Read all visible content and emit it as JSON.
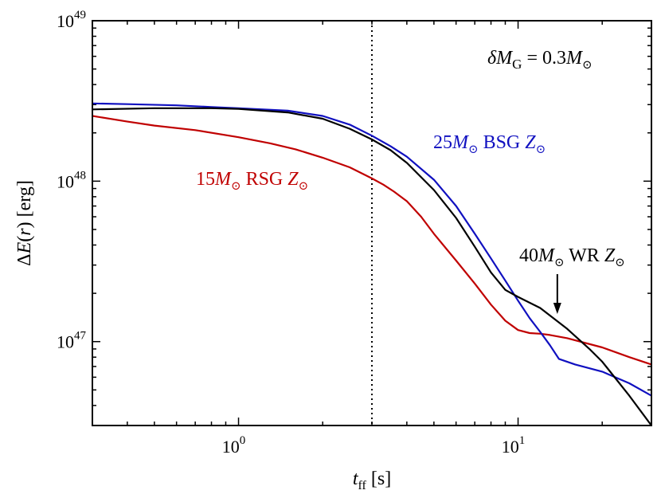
{
  "chart_data": {
    "type": "line",
    "xscale": "log",
    "yscale": "log",
    "xlim": [
      0.3,
      30
    ],
    "ylim": [
      3e+46,
      1e+49
    ],
    "xlabel": "t_ff [s]",
    "ylabel": "ΔE(r) [erg]",
    "x_ticks": [
      {
        "value": 1,
        "base": "10",
        "exp": "0"
      },
      {
        "value": 10,
        "base": "10",
        "exp": "1"
      }
    ],
    "y_ticks": [
      {
        "value": 1e+47,
        "base": "10",
        "exp": "47"
      },
      {
        "value": 1e+48,
        "base": "10",
        "exp": "48"
      },
      {
        "value": 1e+49,
        "base": "10",
        "exp": "49"
      }
    ],
    "vline": {
      "x": 3,
      "style": "dotted",
      "color": "#000000"
    },
    "annotation": {
      "text": "δM_G = 0.3M_⊙"
    },
    "series": [
      {
        "name": "15M⊙ RSG Z⊙",
        "label_mass": "15",
        "label_type": "RSG",
        "color": "#c00000",
        "x": [
          0.3,
          0.4,
          0.5,
          0.7,
          1.0,
          1.3,
          1.6,
          2.0,
          2.5,
          3.0,
          3.3,
          3.6,
          4.0,
          4.5,
          5.0,
          6.0,
          7.0,
          8.0,
          9.0,
          10.0,
          11.0,
          12.0,
          13.0,
          15.0,
          20.0,
          25.0,
          30.0
        ],
        "values": [
          2.55e+48,
          2.35e+48,
          2.22e+48,
          2.08e+48,
          1.88e+48,
          1.72e+48,
          1.58e+48,
          1.4e+48,
          1.22e+48,
          1.04e+48,
          9.5e+47,
          8.6e+47,
          7.5e+47,
          6e+47,
          4.7e+47,
          3.2e+47,
          2.3e+47,
          1.7e+47,
          1.35e+47,
          1.18e+47,
          1.13e+47,
          1.12e+47,
          1.1e+47,
          1.05e+47,
          9.2e+46,
          8e+46,
          7.2e+46
        ]
      },
      {
        "name": "25M⊙ BSG Z⊙",
        "label_mass": "25",
        "label_type": "BSG",
        "color": "#1010c0",
        "x": [
          0.3,
          0.4,
          0.6,
          0.8,
          1.0,
          1.5,
          2.0,
          2.5,
          3.0,
          3.5,
          4.0,
          5.0,
          6.0,
          7.0,
          8.0,
          9.0,
          10.0,
          11.0,
          12.0,
          13.0,
          14.0,
          16.0,
          20.0,
          25.0,
          30.0
        ],
        "values": [
          3.05e+48,
          3.02e+48,
          2.97e+48,
          2.9e+48,
          2.85e+48,
          2.75e+48,
          2.55e+48,
          2.25e+48,
          1.92e+48,
          1.65e+48,
          1.42e+48,
          1.02e+48,
          7e+47,
          4.7e+47,
          3.3e+47,
          2.4e+47,
          1.8e+47,
          1.4e+47,
          1.15e+47,
          9.5e+46,
          7.8e+46,
          7.2e+46,
          6.5e+46,
          5.5e+46,
          4.6e+46
        ]
      },
      {
        "name": "40M⊙ WR Z⊙",
        "label_mass": "40",
        "label_type": "WR",
        "color": "#000000",
        "x": [
          0.3,
          0.5,
          0.8,
          1.0,
          1.5,
          2.0,
          2.5,
          3.0,
          3.5,
          4.0,
          5.0,
          6.0,
          7.0,
          8.0,
          9.0,
          10.0,
          12.0,
          15.0,
          18.0,
          20.0,
          25.0,
          30.0
        ],
        "values": [
          2.8e+48,
          2.85e+48,
          2.85e+48,
          2.82e+48,
          2.68e+48,
          2.45e+48,
          2.12e+48,
          1.82e+48,
          1.56e+48,
          1.3e+48,
          8.8e+47,
          5.9e+47,
          3.9e+47,
          2.7e+47,
          2.1e+47,
          1.9e+47,
          1.62e+47,
          1.2e+47,
          9e+46,
          7.5e+46,
          4.6e+46,
          3e+46
        ]
      }
    ],
    "pointer_arrow": {
      "series": "40M⊙ WR Z⊙",
      "points_to_x": 14
    }
  }
}
